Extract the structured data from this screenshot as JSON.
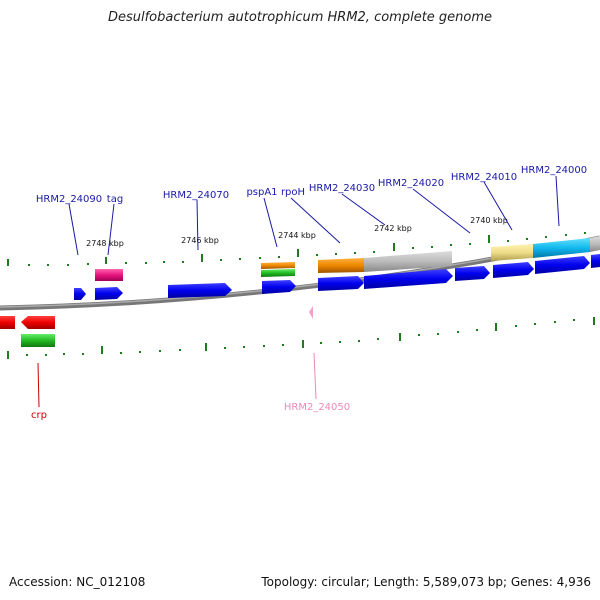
{
  "title": "Desulfobacterium autotrophicum HRM2, complete genome",
  "footer": {
    "accession": "Accession: NC_012108",
    "summary": "Topology: circular; Length: 5,589,073 bp; Genes: 4,936"
  },
  "scale_labels": [
    "2748 kbp",
    "2746 kbp",
    "2744 kbp",
    "2742 kbp",
    "2740 kbp"
  ],
  "gene_labels": [
    {
      "text": "HRM2_24090",
      "color": "#1a1aa6"
    },
    {
      "text": "tag",
      "color": "#1a1aa6"
    },
    {
      "text": "HRM2_24070",
      "color": "#1a1aa6"
    },
    {
      "text": "pspA1",
      "color": "#1a1aa6"
    },
    {
      "text": "rpoH",
      "color": "#1a1aa6"
    },
    {
      "text": "HRM2_24030",
      "color": "#1a1aa6"
    },
    {
      "text": "HRM2_24020",
      "color": "#1a1aa6"
    },
    {
      "text": "HRM2_24010",
      "color": "#1a1aa6"
    },
    {
      "text": "HRM2_24000",
      "color": "#1a1aa6"
    },
    {
      "text": "crp",
      "color": "#cc0000"
    },
    {
      "text": "HRM2_24050",
      "color": "#ee88bb"
    }
  ],
  "colors": {
    "cds": "#0000ee",
    "rrna": "#e8147f",
    "reverse_cds": "#ee0000",
    "tick": "#1e7d1e",
    "backbone": "#888888"
  }
}
